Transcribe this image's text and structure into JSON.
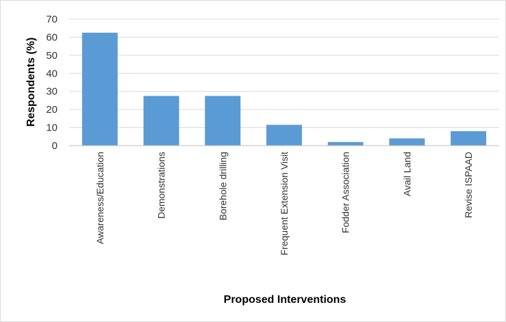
{
  "chart_data": {
    "type": "bar",
    "categories": [
      "Awareness/Education",
      "Demonstrations",
      "Borehole drilling",
      "Frequent Extension Visit",
      "Fodder Association",
      "Avail Land",
      "Revise ISPAAD"
    ],
    "values": [
      62.5,
      27.5,
      27.5,
      11.5,
      2,
      4,
      8
    ],
    "title": "",
    "xlabel": "Proposed Interventions",
    "ylabel": "Respondents (%)",
    "ylim": [
      0,
      70
    ],
    "yticks": [
      "0",
      "10",
      "20",
      "30",
      "40",
      "50",
      "60",
      "70"
    ],
    "grid": true,
    "legend": "none",
    "bar_color": "#5b9bd5",
    "grid_color": "#d9d9d9"
  }
}
